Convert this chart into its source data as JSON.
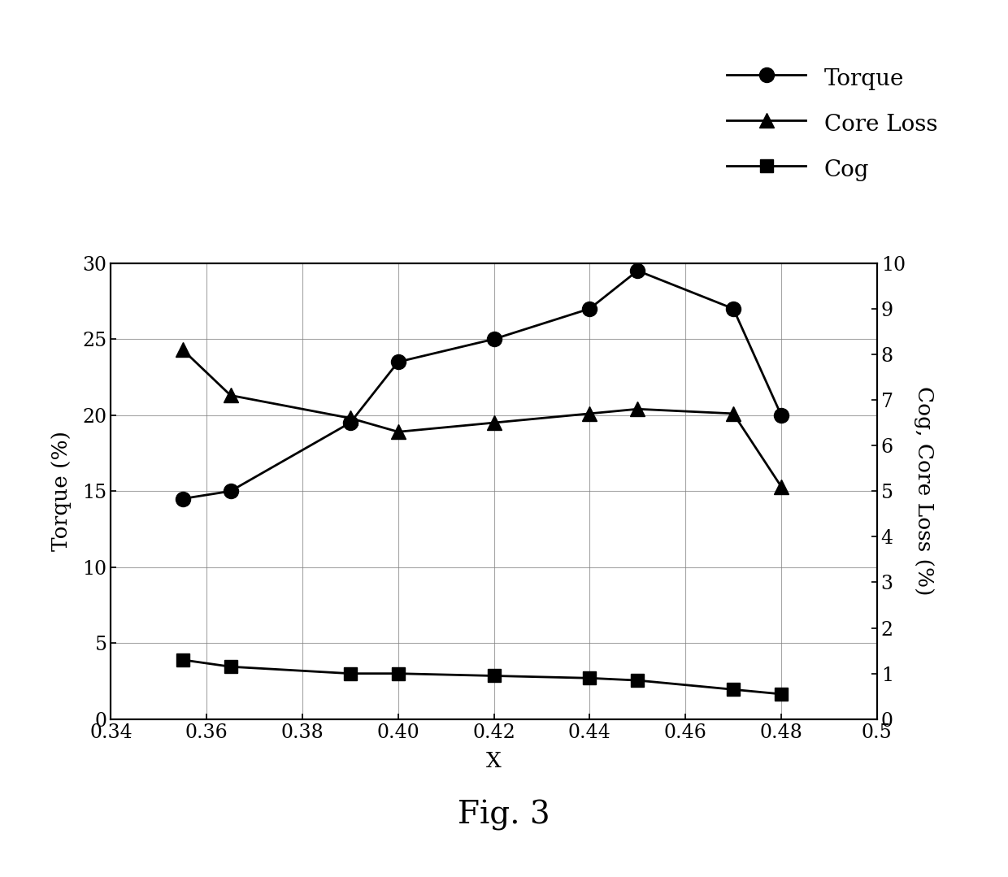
{
  "x": [
    0.355,
    0.365,
    0.39,
    0.4,
    0.42,
    0.44,
    0.45,
    0.47,
    0.48
  ],
  "torque": [
    14.5,
    15.0,
    19.5,
    23.5,
    25.0,
    27.0,
    29.5,
    27.0,
    20.0
  ],
  "core_loss": [
    8.1,
    7.1,
    6.6,
    6.3,
    6.5,
    6.7,
    6.8,
    6.7,
    5.1
  ],
  "cog": [
    1.3,
    1.15,
    1.0,
    1.0,
    0.95,
    0.9,
    0.85,
    0.65,
    0.55
  ],
  "xlabel": "X",
  "ylabel_left": "Torque (%)",
  "ylabel_right": "Cog, Core Loss (%)",
  "title": "Fig. 3",
  "xlim": [
    0.34,
    0.5
  ],
  "xticks": [
    0.34,
    0.36,
    0.38,
    0.4,
    0.42,
    0.44,
    0.46,
    0.48,
    0.5
  ],
  "xticklabels": [
    "0.34",
    "0.36",
    "0.38",
    "0.40",
    "0.42",
    "0.44",
    "0.46",
    "0.48",
    "0.5"
  ],
  "ylim_left": [
    0,
    30
  ],
  "yticks_left": [
    0,
    5,
    10,
    15,
    20,
    25,
    30
  ],
  "ylim_right": [
    0,
    10
  ],
  "yticks_right": [
    0,
    1,
    2,
    3,
    4,
    5,
    6,
    7,
    8,
    9,
    10
  ],
  "line_color": "#000000",
  "marker_torque": "o",
  "marker_core_loss": "^",
  "marker_cog": "s",
  "legend_labels": [
    "Torque",
    "Core Loss",
    "Cog"
  ],
  "background_color": "#ffffff",
  "fontsize_title": 28,
  "fontsize_labels": 19,
  "fontsize_ticks": 17,
  "fontsize_legend": 20,
  "linewidth": 2.0,
  "markersize_torque": 13,
  "markersize_core_loss": 13,
  "markersize_cog": 11
}
